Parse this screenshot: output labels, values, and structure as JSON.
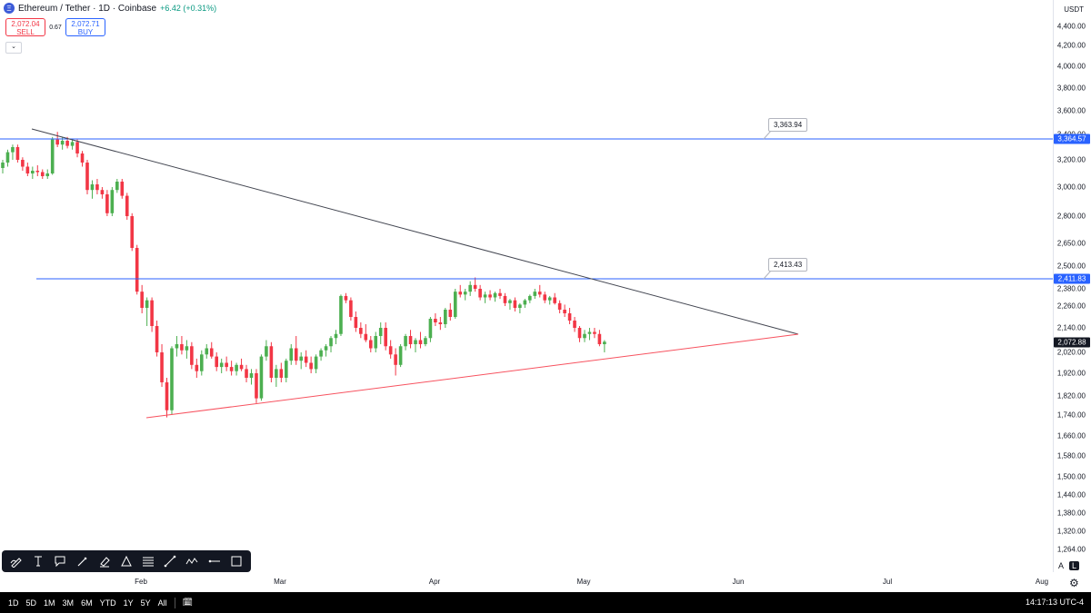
{
  "header": {
    "symbol": "Ethereum / Tether · 1D · Coinbase",
    "change": "+6.42 (+0.31%)",
    "logo": "Ξ"
  },
  "quotes": {
    "sell_price": "2,072.04",
    "sell_label": "SELL",
    "spread": "0.67",
    "buy_price": "2,072.71",
    "buy_label": "BUY",
    "collapse_glyph": "⌄"
  },
  "price_axis": {
    "currency": "USDT",
    "ticks": [
      "4,400.00",
      "4,200.00",
      "4,000.00",
      "3,800.00",
      "3,600.00",
      "3,400.00",
      "3,200.00",
      "3,000.00",
      "2,800.00",
      "2,650.00",
      "2,500.00",
      "2,380.00",
      "2,260.00",
      "2,140.00",
      "2,020.00",
      "1,920.00",
      "1,820.00",
      "1,740.00",
      "1,660.00",
      "1,580.00",
      "1,500.00",
      "1,440.00",
      "1,380.00",
      "1,320.00",
      "1,264.00"
    ],
    "labels": {
      "top_line": "3,364.57",
      "mid_line": "2,411.83",
      "last_price": "2,072.88"
    }
  },
  "time_axis": {
    "ticks": [
      "Feb",
      "Mar",
      "Apr",
      "May",
      "Jun",
      "Jul",
      "Aug"
    ]
  },
  "callouts": {
    "top": "3,363.94",
    "mid": "2,413.43"
  },
  "colors": {
    "up": "#4caf50",
    "down": "#f23645",
    "hline": "#2962ff",
    "trend_upper": "#434651",
    "trend_lower": "#f7525f",
    "last_price_bg": "#131722"
  },
  "toolbar": {
    "tools": [
      "pencil-icon",
      "text-icon",
      "note-icon",
      "brush-icon",
      "highlighter-icon",
      "triangle-icon",
      "fib-icon",
      "trend-line-icon",
      "path-icon",
      "horizontal-ray-icon",
      "rectangle-icon"
    ]
  },
  "scale": {
    "auto": "A",
    "log": "L",
    "settings": "⚙"
  },
  "bottom_bar": {
    "ranges": [
      "1D",
      "5D",
      "1M",
      "3M",
      "6M",
      "YTD",
      "1Y",
      "5Y",
      "All"
    ],
    "calendar": "🗓",
    "clock": "14:17:13 UTC-4"
  },
  "chart_data": {
    "type": "candlestick",
    "interval": "1D",
    "price_min": 1264,
    "price_max": 4400,
    "horizontal_lines": [
      3364.57,
      2411.83
    ],
    "last_price": 2072.88,
    "candles": [
      [
        3140,
        3200,
        3100,
        3180
      ],
      [
        3180,
        3280,
        3150,
        3260
      ],
      [
        3260,
        3320,
        3200,
        3300
      ],
      [
        3300,
        3320,
        3180,
        3200
      ],
      [
        3200,
        3220,
        3120,
        3150
      ],
      [
        3150,
        3180,
        3080,
        3100
      ],
      [
        3100,
        3150,
        3060,
        3120
      ],
      [
        3120,
        3160,
        3080,
        3110
      ],
      [
        3110,
        3130,
        3060,
        3080
      ],
      [
        3080,
        3130,
        3060,
        3100
      ],
      [
        3100,
        3380,
        3090,
        3360
      ],
      [
        3360,
        3420,
        3300,
        3320
      ],
      [
        3320,
        3380,
        3280,
        3350
      ],
      [
        3350,
        3380,
        3290,
        3310
      ],
      [
        3310,
        3360,
        3280,
        3340
      ],
      [
        3340,
        3360,
        3220,
        3250
      ],
      [
        3250,
        3270,
        3150,
        3180
      ],
      [
        3180,
        3200,
        2950,
        2980
      ],
      [
        2980,
        3050,
        2920,
        3020
      ],
      [
        3020,
        3060,
        2950,
        2980
      ],
      [
        2980,
        3000,
        2920,
        2950
      ],
      [
        2950,
        2980,
        2800,
        2820
      ],
      [
        2820,
        3000,
        2800,
        2980
      ],
      [
        2980,
        3060,
        2960,
        3040
      ],
      [
        3040,
        3060,
        2920,
        2940
      ],
      [
        2940,
        2960,
        2780,
        2800
      ],
      [
        2800,
        2820,
        2600,
        2620
      ],
      [
        2620,
        2640,
        2340,
        2360
      ],
      [
        2360,
        2400,
        2220,
        2250
      ],
      [
        2250,
        2320,
        2150,
        2300
      ],
      [
        2300,
        2320,
        2120,
        2150
      ],
      [
        2150,
        2180,
        2000,
        2020
      ],
      [
        2020,
        2060,
        1860,
        1880
      ],
      [
        1880,
        1900,
        1730,
        1760
      ],
      [
        1760,
        2050,
        1740,
        2040
      ],
      [
        2040,
        2100,
        2000,
        2060
      ],
      [
        2060,
        2100,
        2010,
        2030
      ],
      [
        2030,
        2080,
        1990,
        2050
      ],
      [
        2050,
        2070,
        1940,
        1960
      ],
      [
        1960,
        1990,
        1900,
        1930
      ],
      [
        1930,
        2030,
        1910,
        2010
      ],
      [
        2010,
        2060,
        1990,
        2040
      ],
      [
        2040,
        2070,
        1990,
        2000
      ],
      [
        2000,
        2020,
        1930,
        1950
      ],
      [
        1950,
        1990,
        1920,
        1970
      ],
      [
        1970,
        2000,
        1930,
        1950
      ],
      [
        1950,
        1980,
        1910,
        1930
      ],
      [
        1930,
        1970,
        1910,
        1960
      ],
      [
        1960,
        1990,
        1930,
        1940
      ],
      [
        1940,
        1960,
        1880,
        1900
      ],
      [
        1900,
        1940,
        1870,
        1920
      ],
      [
        1920,
        1940,
        1790,
        1810
      ],
      [
        1810,
        2010,
        1800,
        2000
      ],
      [
        2000,
        2080,
        1980,
        2050
      ],
      [
        2050,
        2070,
        1880,
        1900
      ],
      [
        1900,
        1960,
        1860,
        1940
      ],
      [
        1940,
        1970,
        1880,
        1900
      ],
      [
        1900,
        1990,
        1880,
        1980
      ],
      [
        1980,
        2060,
        1960,
        2040
      ],
      [
        2040,
        2100,
        1960,
        1980
      ],
      [
        1980,
        2020,
        1940,
        2000
      ],
      [
        2000,
        2030,
        1950,
        1970
      ],
      [
        1970,
        2000,
        1920,
        1940
      ],
      [
        1940,
        2010,
        1920,
        2000
      ],
      [
        2000,
        2040,
        1980,
        2030
      ],
      [
        2030,
        2060,
        2000,
        2050
      ],
      [
        2050,
        2100,
        2020,
        2090
      ],
      [
        2090,
        2130,
        2060,
        2110
      ],
      [
        2110,
        2340,
        2100,
        2330
      ],
      [
        2330,
        2350,
        2280,
        2300
      ],
      [
        2300,
        2320,
        2180,
        2200
      ],
      [
        2200,
        2230,
        2120,
        2140
      ],
      [
        2140,
        2170,
        2090,
        2110
      ],
      [
        2110,
        2160,
        2070,
        2080
      ],
      [
        2080,
        2100,
        2020,
        2040
      ],
      [
        2040,
        2120,
        2020,
        2100
      ],
      [
        2100,
        2170,
        2060,
        2140
      ],
      [
        2140,
        2170,
        2030,
        2050
      ],
      [
        2050,
        2080,
        1990,
        2010
      ],
      [
        2010,
        2040,
        1910,
        1960
      ],
      [
        1960,
        2060,
        1950,
        2050
      ],
      [
        2050,
        2110,
        2030,
        2100
      ],
      [
        2100,
        2130,
        2040,
        2060
      ],
      [
        2060,
        2090,
        2020,
        2080
      ],
      [
        2080,
        2120,
        2040,
        2060
      ],
      [
        2060,
        2100,
        2050,
        2090
      ],
      [
        2090,
        2200,
        2070,
        2190
      ],
      [
        2190,
        2220,
        2150,
        2170
      ],
      [
        2170,
        2200,
        2130,
        2160
      ],
      [
        2160,
        2250,
        2140,
        2240
      ],
      [
        2240,
        2280,
        2180,
        2200
      ],
      [
        2200,
        2380,
        2190,
        2360
      ],
      [
        2360,
        2400,
        2320,
        2340
      ],
      [
        2340,
        2380,
        2300,
        2360
      ],
      [
        2360,
        2420,
        2330,
        2400
      ],
      [
        2400,
        2440,
        2360,
        2380
      ],
      [
        2380,
        2400,
        2300,
        2320
      ],
      [
        2320,
        2360,
        2280,
        2340
      ],
      [
        2340,
        2370,
        2300,
        2320
      ],
      [
        2320,
        2360,
        2290,
        2350
      ],
      [
        2350,
        2380,
        2310,
        2330
      ],
      [
        2330,
        2350,
        2260,
        2280
      ],
      [
        2280,
        2310,
        2240,
        2300
      ],
      [
        2300,
        2320,
        2230,
        2250
      ],
      [
        2250,
        2280,
        2220,
        2270
      ],
      [
        2270,
        2310,
        2250,
        2300
      ],
      [
        2300,
        2340,
        2280,
        2330
      ],
      [
        2330,
        2380,
        2310,
        2360
      ],
      [
        2360,
        2400,
        2320,
        2340
      ],
      [
        2340,
        2360,
        2280,
        2300
      ],
      [
        2300,
        2330,
        2270,
        2320
      ],
      [
        2320,
        2350,
        2270,
        2280
      ],
      [
        2280,
        2300,
        2220,
        2240
      ],
      [
        2240,
        2270,
        2200,
        2220
      ],
      [
        2220,
        2250,
        2160,
        2180
      ],
      [
        2180,
        2200,
        2120,
        2140
      ],
      [
        2140,
        2150,
        2070,
        2090
      ],
      [
        2090,
        2130,
        2070,
        2110
      ],
      [
        2110,
        2140,
        2080,
        2120
      ],
      [
        2120,
        2140,
        2090,
        2110
      ],
      [
        2110,
        2130,
        2050,
        2060
      ],
      [
        2060,
        2080,
        2020,
        2072
      ]
    ]
  }
}
